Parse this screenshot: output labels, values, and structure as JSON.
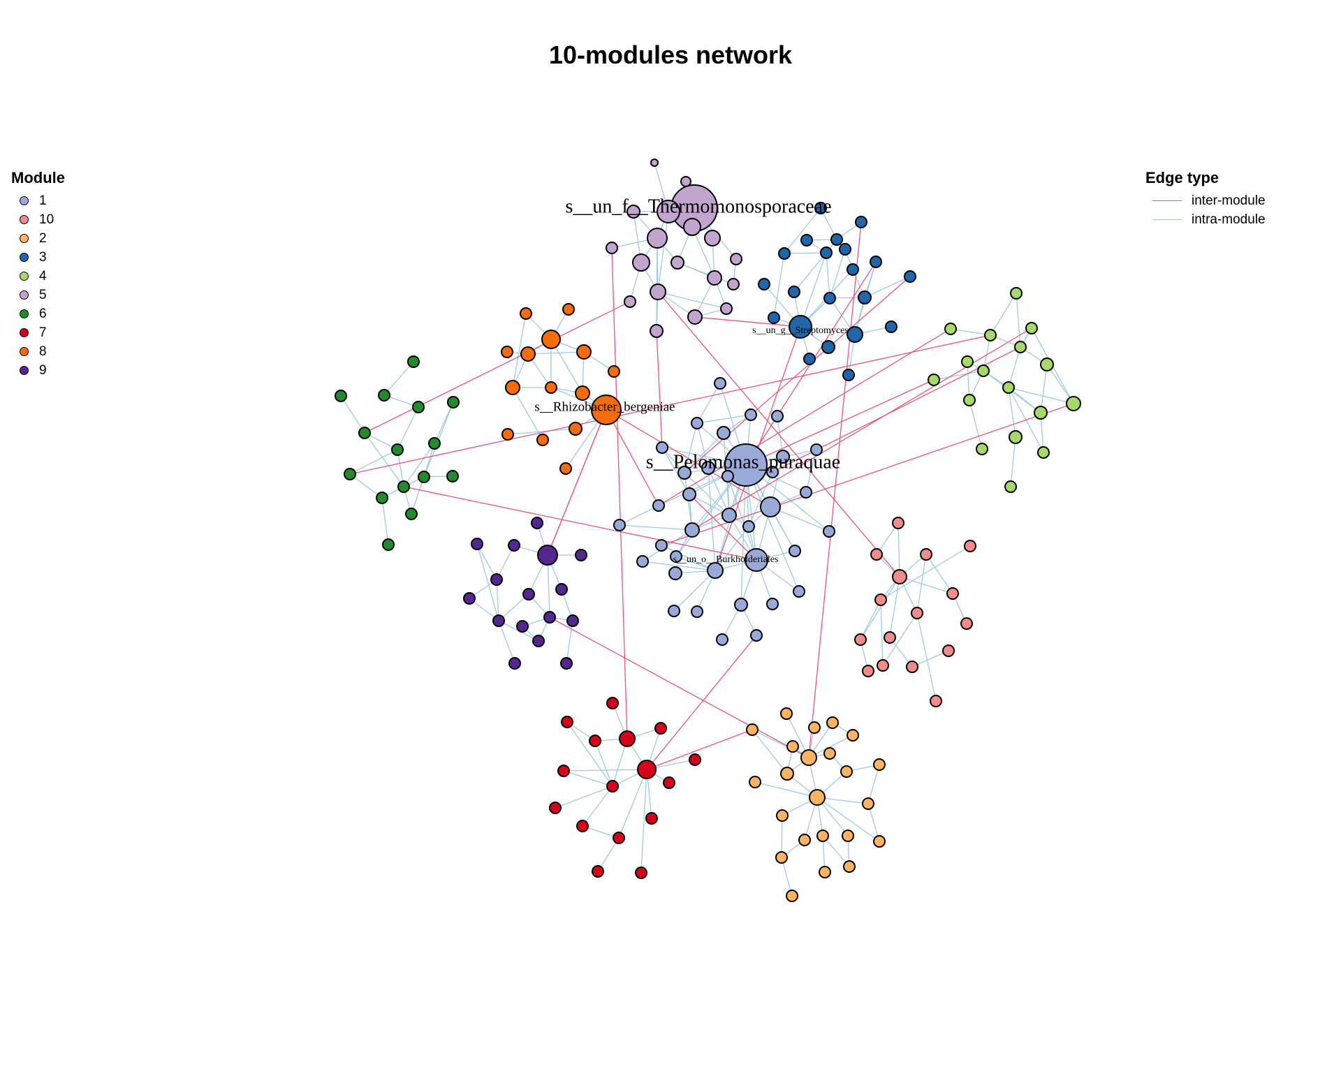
{
  "title": "10-modules network",
  "module_legend": {
    "title": "Module",
    "items": [
      {
        "label": "1",
        "color": "#9AAAD8"
      },
      {
        "label": "10",
        "color": "#F08C8C"
      },
      {
        "label": "2",
        "color": "#FDB462"
      },
      {
        "label": "3",
        "color": "#1F66AA"
      },
      {
        "label": "4",
        "color": "#A6D96A"
      },
      {
        "label": "5",
        "color": "#C2A5CF"
      },
      {
        "label": "6",
        "color": "#238B2E"
      },
      {
        "label": "7",
        "color": "#D7001C"
      },
      {
        "label": "8",
        "color": "#F46D0A"
      },
      {
        "label": "9",
        "color": "#54278F"
      }
    ]
  },
  "edge_legend": {
    "title": "Edge type",
    "items": [
      {
        "label": "inter-module",
        "color": "#E8557A"
      },
      {
        "label": "intra-module",
        "color": "#9ECAE1"
      }
    ]
  },
  "hub_labels": [
    {
      "text": "s__un_f__Thermomonosporaceae"
    },
    {
      "text": "s__un_g__Streptomyces"
    },
    {
      "text": "s__Rhizobacter_bergeniae"
    },
    {
      "text": "s__Pelomonas_puraquae"
    },
    {
      "text": "s__un_o__Burkholderiales"
    }
  ]
}
